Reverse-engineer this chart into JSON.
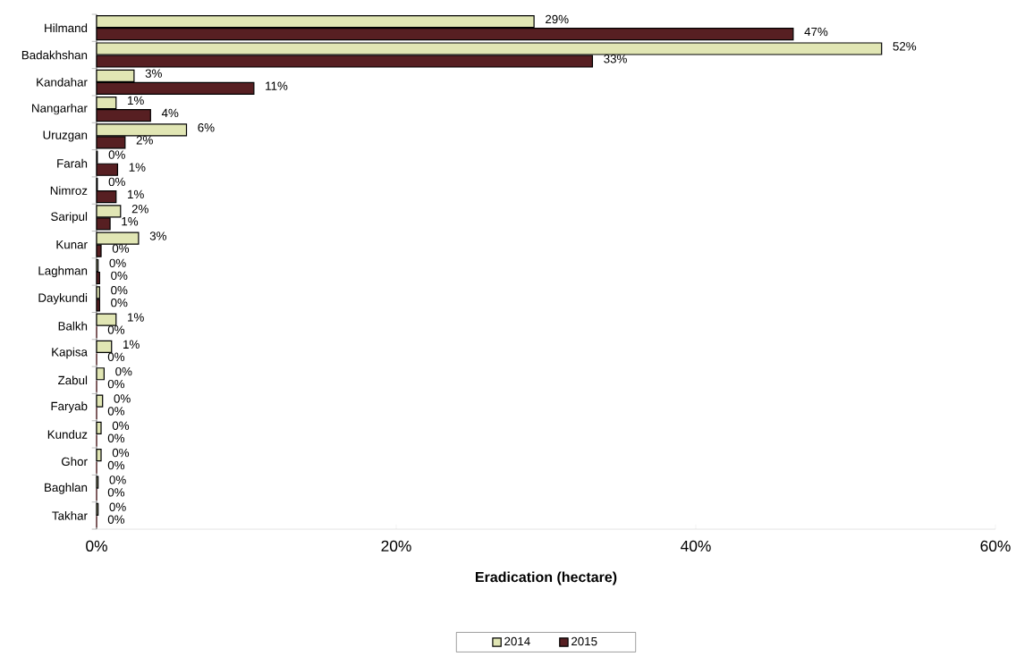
{
  "chart_data": {
    "type": "bar",
    "orientation": "horizontal",
    "xlabel": "Eradication (hectare)",
    "categories": [
      "Hilmand",
      "Badakhshan",
      "Kandahar",
      "Nangarhar",
      "Uruzgan",
      "Farah",
      "Nimroz",
      "Saripul",
      "Kunar",
      "Laghman",
      "Daykundi",
      "Balkh",
      "Kapisa",
      "Zabul",
      "Faryab",
      "Kunduz",
      "Ghor",
      "Baghlan",
      "Takhar"
    ],
    "series": [
      {
        "name": "2014",
        "color": "#e1e6b4",
        "values": [
          29.2,
          52.4,
          2.5,
          1.3,
          6.0,
          0.05,
          0.05,
          1.6,
          2.8,
          0.1,
          0.2,
          1.3,
          1.0,
          0.5,
          0.4,
          0.3,
          0.3,
          0.1,
          0.1
        ],
        "value_labels": [
          "29%",
          "52%",
          "3%",
          "1%",
          "6%",
          "0%",
          "0%",
          "2%",
          "3%",
          "0%",
          "0%",
          "1%",
          "1%",
          "0%",
          "0%",
          "0%",
          "0%",
          "0%",
          "0%"
        ]
      },
      {
        "name": "2015",
        "color": "#571f22",
        "values": [
          46.5,
          33.1,
          10.5,
          3.6,
          1.9,
          1.4,
          1.3,
          0.9,
          0.3,
          0.2,
          0.2,
          0,
          0,
          0,
          0,
          0,
          0,
          0,
          0
        ],
        "value_labels": [
          "47%",
          "33%",
          "11%",
          "4%",
          "2%",
          "1%",
          "1%",
          "1%",
          "0%",
          "0%",
          "0%",
          "0%",
          "0%",
          "0%",
          "0%",
          "0%",
          "0%",
          "0%",
          "0%"
        ]
      }
    ],
    "xlim": [
      0,
      60
    ],
    "xticks": [
      {
        "value": 0,
        "label": "0%"
      },
      {
        "value": 20,
        "label": "20%"
      },
      {
        "value": 40,
        "label": "40%"
      },
      {
        "value": 60,
        "label": "60%"
      }
    ],
    "legend": "bottom",
    "grid": false
  }
}
